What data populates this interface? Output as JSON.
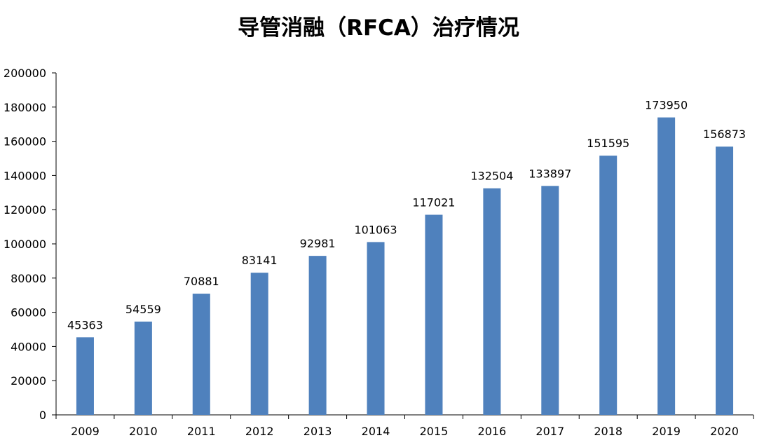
{
  "chart_data": {
    "type": "bar",
    "title": "导管消融（RFCA）治疗情况",
    "categories": [
      "2009",
      "2010",
      "2011",
      "2012",
      "2013",
      "2014",
      "2015",
      "2016",
      "2017",
      "2018",
      "2019",
      "2020"
    ],
    "values": [
      45363,
      54559,
      70881,
      83141,
      92981,
      101063,
      117021,
      132504,
      133897,
      151595,
      173950,
      156873
    ],
    "ylim": [
      0,
      200000
    ],
    "yticks": [
      0,
      20000,
      40000,
      60000,
      80000,
      100000,
      120000,
      140000,
      160000,
      180000,
      200000
    ],
    "data_labels": true,
    "grid": false,
    "legend": "none",
    "colors": {
      "bar": "#4f81bd",
      "axis": "#000000"
    }
  }
}
